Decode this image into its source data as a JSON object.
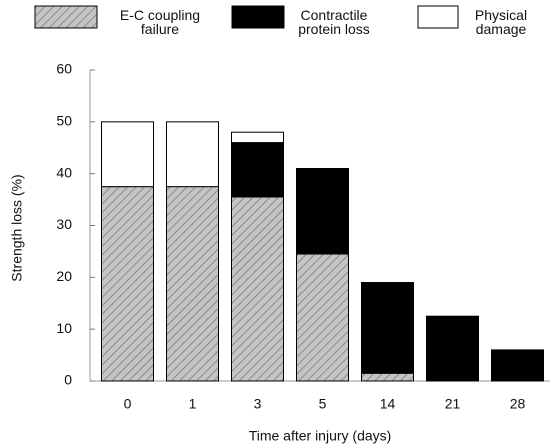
{
  "chart_data": {
    "type": "stacked-bar",
    "categories": [
      "0",
      "1",
      "3",
      "5",
      "14",
      "21",
      "28"
    ],
    "series": [
      {
        "name": "E-C coupling failure",
        "color": "#c4c4c4",
        "pattern": "hatch",
        "values": [
          37.5,
          37.5,
          35.5,
          24.5,
          1.5,
          0,
          0
        ]
      },
      {
        "name": "Contractile protein loss",
        "color": "#000000",
        "values": [
          0,
          0,
          10.5,
          16.5,
          17.5,
          12.5,
          6
        ]
      },
      {
        "name": "Physical damage",
        "color": "#ffffff",
        "values": [
          12.5,
          12.5,
          2,
          0,
          0,
          0,
          0
        ]
      }
    ],
    "xlabel": "Time after injury (days)",
    "ylabel": "Strength loss (%)",
    "ylim": [
      0,
      60
    ],
    "yticks": [
      0,
      10,
      20,
      30,
      40,
      50,
      60
    ]
  }
}
